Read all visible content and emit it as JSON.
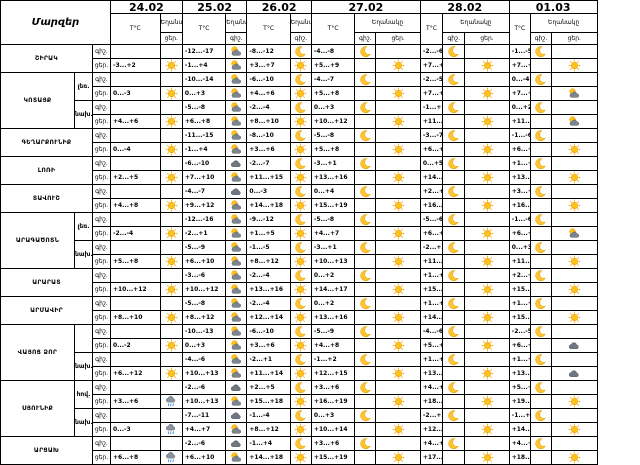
{
  "header_title": "Մարզեր",
  "tc_label": "T°C",
  "weather_label": "Եղանակը",
  "day_label": "ցեր.",
  "night_label": "գիշ.",
  "dates": [
    "24.02",
    "25.02",
    "26.02",
    "27.02",
    "28.02",
    "01.03"
  ],
  "regions": [
    {
      "name": "ՇԻՐԱԿ",
      "subs": [
        {
          "label": "",
          "rows": [
            {
              "dn": "գիշ.",
              "t": [
                "",
                "-12...-17",
                "-8...-12",
                "-4...-8",
                "-2...-6",
                "-1...-5"
              ],
              "w": [
                "",
                "cloudsun",
                "moon",
                "moon",
                "moon",
                "moon"
              ]
            },
            {
              "dn": "ցեր.",
              "t": [
                "-3...+2",
                "-1...+4",
                "+3...+7",
                "+5...+9",
                "+7...+11",
                "+7...+10"
              ],
              "w": [
                "sun",
                "cloudsun",
                "sun",
                "sun",
                "sun",
                "sun"
              ]
            }
          ]
        }
      ]
    },
    {
      "name": "ԿՈՏԱՅՔ",
      "subs": [
        {
          "label": "լեռ.",
          "rows": [
            {
              "dn": "գիշ.",
              "t": [
                "",
                "-10...-14",
                "-6...-10",
                "-4...-7",
                "-2...-5",
                "0...-4"
              ],
              "w": [
                "",
                "cloudsun",
                "moon",
                "moon",
                "moon",
                "moon"
              ]
            },
            {
              "dn": "ցեր.",
              "t": [
                "0...-3",
                "0...+3",
                "+4...+6",
                "+5...+8",
                "+7...+10",
                "+7...+9"
              ],
              "w": [
                "sun",
                "cloudsun",
                "sun",
                "sun",
                "sun",
                "cloudsun"
              ]
            }
          ]
        },
        {
          "label": "նախ.",
          "rows": [
            {
              "dn": "գիշ.",
              "t": [
                "",
                "-5...-8",
                "-2...-4",
                "0...+3",
                "-1...+2",
                "0...+2"
              ],
              "w": [
                "",
                "cloudsun",
                "moon",
                "moon",
                "moon",
                "moon"
              ]
            },
            {
              "dn": "ցեր.",
              "t": [
                "+4...+6",
                "+6...+8",
                "+8...+10",
                "+10...+12",
                "+11...+13",
                "+11...+13"
              ],
              "w": [
                "sun",
                "cloudsun",
                "sun",
                "sun",
                "sun",
                "cloudsun"
              ]
            }
          ]
        }
      ]
    },
    {
      "name": "ԳԵՂԱՐՔՈՒՆԻՔ",
      "subs": [
        {
          "label": "",
          "rows": [
            {
              "dn": "գիշ.",
              "t": [
                "",
                "-11...-15",
                "-8...-10",
                "-5...-8",
                "-3...-7",
                "-1...-6"
              ],
              "w": [
                "",
                "cloudsun",
                "moon",
                "moon",
                "moon",
                "moon"
              ]
            },
            {
              "dn": "ցեր.",
              "t": [
                "0...-4",
                "-1...+4",
                "+3...+6",
                "+5...+8",
                "+6...+9",
                "+6...+9"
              ],
              "w": [
                "sun",
                "cloudsun",
                "sun",
                "sun",
                "sun",
                "sun"
              ]
            }
          ]
        }
      ]
    },
    {
      "name": "ԼՈՌԻ",
      "subs": [
        {
          "label": "",
          "rows": [
            {
              "dn": "գիշ.",
              "t": [
                "",
                "-6...-10",
                "-2...-7",
                "-3...+1",
                "0...+5",
                "+1...+6"
              ],
              "w": [
                "",
                "cloud",
                "moon",
                "moon",
                "moon",
                "moon"
              ]
            },
            {
              "dn": "ցեր.",
              "t": [
                "+2...+5",
                "+7...+10",
                "+11...+15",
                "+13...+16",
                "+14...+17",
                "+13...+16"
              ],
              "w": [
                "sun",
                "cloudsun",
                "sun",
                "sun",
                "sun",
                "sun"
              ]
            }
          ]
        }
      ]
    },
    {
      "name": "ՏԱՎՈՒՇ",
      "subs": [
        {
          "label": "",
          "rows": [
            {
              "dn": "գիշ.",
              "t": [
                "",
                "-4...-7",
                "0...-3",
                "0...+4",
                "+2...+7",
                "+3...+7"
              ],
              "w": [
                "",
                "cloud",
                "moon",
                "moon",
                "moon",
                "moon"
              ]
            },
            {
              "dn": "ցեր.",
              "t": [
                "+4...+8",
                "+9...+12",
                "+14...+18",
                "+15...+19",
                "+16...+20",
                "+16...+18"
              ],
              "w": [
                "sun",
                "cloudsun",
                "sun",
                "sun",
                "sun",
                "sun"
              ]
            }
          ]
        }
      ]
    },
    {
      "name": "ԱՐԱԳԱԾՈՏՆ",
      "subs": [
        {
          "label": "լեռ.",
          "rows": [
            {
              "dn": "գիշ.",
              "t": [
                "",
                "-12...-16",
                "-9...-12",
                "-5...-8",
                "-5...-6",
                "-1...-6"
              ],
              "w": [
                "",
                "cloudsun",
                "moon",
                "moon",
                "moon",
                "moon"
              ]
            },
            {
              "dn": "ցեր.",
              "t": [
                "-2...-4",
                "-2...+1",
                "+1...+5",
                "+4...+7",
                "+6...+9",
                "+6...+9"
              ],
              "w": [
                "sun",
                "cloudsun",
                "sun",
                "sun",
                "sun",
                "cloudsun"
              ]
            }
          ]
        },
        {
          "label": "նախ.",
          "rows": [
            {
              "dn": "գիշ.",
              "t": [
                "",
                "-5...-9",
                "-1...-5",
                "-3...+1",
                "-2...+3",
                "0...+3"
              ],
              "w": [
                "",
                "cloudsun",
                "moon",
                "moon",
                "moon",
                "moon"
              ]
            },
            {
              "dn": "ցեր.",
              "t": [
                "+5...+8",
                "+6...+10",
                "+8...+12",
                "+10...+13",
                "+11...+13",
                "+11...+15"
              ],
              "w": [
                "sun",
                "cloudsun",
                "sun",
                "sun",
                "sun",
                "sun"
              ]
            }
          ]
        }
      ]
    },
    {
      "name": "ԱՐԱՐԱՏ",
      "subs": [
        {
          "label": "",
          "rows": [
            {
              "dn": "գիշ.",
              "t": [
                "",
                "-3...-6",
                "-2...-4",
                "0...+2",
                "+1...+4",
                "+2...+5"
              ],
              "w": [
                "",
                "cloudsun",
                "moon",
                "moon",
                "moon",
                "moon"
              ]
            },
            {
              "dn": "ցեր.",
              "t": [
                "+10...+12",
                "+10...+12",
                "+13...+16",
                "+14...+17",
                "+15...+18",
                "+15...+18"
              ],
              "w": [
                "sun",
                "cloudsun",
                "sun",
                "sun",
                "sun",
                "sun"
              ]
            }
          ]
        }
      ]
    },
    {
      "name": "ԱՐՄԱՎԻՐ",
      "subs": [
        {
          "label": "",
          "rows": [
            {
              "dn": "գիշ.",
              "t": [
                "",
                "-5...-8",
                "-2...-4",
                "0...+2",
                "+1...+4",
                "+1...+3"
              ],
              "w": [
                "",
                "cloudsun",
                "moon",
                "moon",
                "moon",
                "moon"
              ]
            },
            {
              "dn": "ցեր.",
              "t": [
                "+8...+10",
                "+8...+12",
                "+12...+14",
                "+13...+16",
                "+14...+17",
                "+15...+18"
              ],
              "w": [
                "sun",
                "cloudsun",
                "sun",
                "sun",
                "sun",
                "sun"
              ]
            }
          ]
        }
      ]
    },
    {
      "name": "ՎԱՅՈՑ ՁՈՐ",
      "subs": [
        {
          "label": "",
          "rows": [
            {
              "dn": "գիշ.",
              "t": [
                "",
                "-10...-13",
                "-6...-10",
                "-5...-9",
                "-4...-6",
                "-2...-5"
              ],
              "w": [
                "",
                "cloudsun",
                "moon",
                "moon",
                "moon",
                "moon"
              ]
            },
            {
              "dn": "ցեր.",
              "t": [
                "0...-2",
                "0...+3",
                "+3...+6",
                "+4...+8",
                "+5...+8",
                "+6...+9"
              ],
              "w": [
                "sun",
                "cloudsun",
                "sun",
                "sun",
                "sun",
                "cloud"
              ]
            }
          ]
        },
        {
          "label": "նախ.",
          "rows": [
            {
              "dn": "գիշ.",
              "t": [
                "",
                "-4...-6",
                "-2...+1",
                "-1...+2",
                "+1...+3",
                "+1...+4"
              ],
              "w": [
                "",
                "cloudsun",
                "moon",
                "moon",
                "moon",
                "moon"
              ]
            },
            {
              "dn": "ցեր.",
              "t": [
                "+6...+12",
                "+10...+13",
                "+11...+14",
                "+12...+15",
                "+13...+16",
                "+13...+17"
              ],
              "w": [
                "sun",
                "cloudsun",
                "sun",
                "sun",
                "sun",
                "cloud"
              ]
            }
          ]
        }
      ]
    },
    {
      "name": "ՍՅՈՒՆԻՔ",
      "subs": [
        {
          "label": "հով.",
          "rows": [
            {
              "dn": "գիշ.",
              "t": [
                "",
                "-2...-6",
                "+2...+5",
                "+3...+6",
                "+4...+7",
                "+5...+8"
              ],
              "w": [
                "",
                "cloud",
                "moon",
                "moon",
                "moon",
                "moon"
              ]
            },
            {
              "dn": "ցեր.",
              "t": [
                "+3...+6",
                "+10...+13",
                "+15...+18",
                "+16...+19",
                "+18...+21",
                "+19...+23"
              ],
              "w": [
                "rain",
                "cloudsun",
                "sun",
                "sun",
                "sun",
                "sun"
              ]
            }
          ]
        },
        {
          "label": "նախ.",
          "rows": [
            {
              "dn": "գիշ.",
              "t": [
                "",
                "-7...-11",
                "-1...-4",
                "0...+3",
                "-2...+2",
                "-1...+4"
              ],
              "w": [
                "",
                "cloud",
                "moon",
                "moon",
                "moon",
                "moon"
              ]
            },
            {
              "dn": "ցեր.",
              "t": [
                "0...-3",
                "+4...+7",
                "+8...+12",
                "+10...+14",
                "+12...+16",
                "+14...+18"
              ],
              "w": [
                "rain",
                "cloudsun",
                "sun",
                "sun",
                "sun",
                "sun"
              ]
            }
          ]
        }
      ]
    },
    {
      "name": "ԱՐՑԱԽ",
      "subs": [
        {
          "label": "",
          "rows": [
            {
              "dn": "գիշ.",
              "t": [
                "",
                "-2...-6",
                "-1...+4",
                "+3...+6",
                "+4...+7",
                "+4...+7"
              ],
              "w": [
                "",
                "cloud",
                "moon",
                "moon",
                "moon",
                "moon"
              ]
            },
            {
              "dn": "ցեր.",
              "t": [
                "+6...+8",
                "+6...+10",
                "+14...+18",
                "+15...+19",
                "+17...+22",
                "+18...+23"
              ],
              "w": [
                "rain",
                "cloudsun",
                "sun",
                "sun",
                "sun",
                "sun"
              ]
            }
          ]
        }
      ]
    }
  ]
}
